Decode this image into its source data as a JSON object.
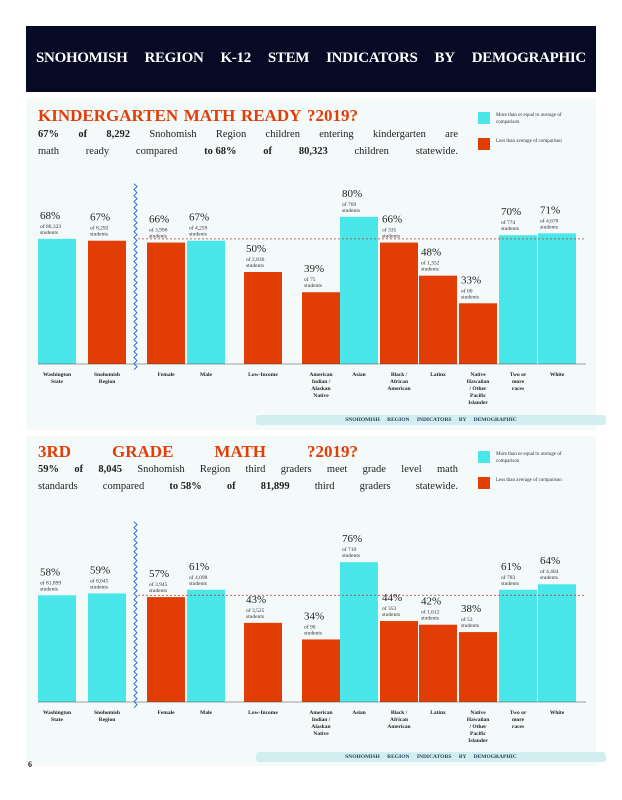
{
  "header": {
    "title_words": [
      "SNOHOMISH",
      "REGION",
      "K-12",
      "STEM",
      "INDICATORS",
      "BY",
      "DEMOGRAPHIC"
    ]
  },
  "legend": {
    "above_label": "More than or equal to average of comparison",
    "below_label": "Less than average of comparison",
    "above_color": "#49e6ea",
    "below_color": "#e23d05"
  },
  "footer_label": "SNOHOMISH REGION INDICATORS BY DEMOGRAPHIC",
  "page_number": "6",
  "sections": [
    {
      "title_words": [
        "KINDERGARTEN",
        "MATH",
        "READY",
        "?2019?"
      ],
      "summary_line1": [
        "67%",
        "of",
        "8,292",
        "Snohomish",
        "Region",
        "children",
        "entering",
        "kindergarten",
        "are"
      ],
      "summary_line2": [
        "math",
        "ready",
        "compared",
        "to 68%",
        "of",
        "80,323",
        "children",
        "statewide."
      ],
      "chart_data": {
        "type": "bar",
        "title": "KINDERGARTEN MATH READY ?2019?",
        "reference_line": 68,
        "categories": [
          "Washington State",
          "Snohomish Region",
          "Female",
          "Male",
          "Low-Income",
          "American Indian / Alaskan Native",
          "Asian",
          "Black / African American",
          "Latinx",
          "Native Hawaiian / Other Pacific Islander",
          "Two or more races",
          "White"
        ],
        "values": [
          68,
          67,
          66,
          67,
          50,
          39,
          80,
          66,
          48,
          33,
          70,
          71
        ],
        "value_labels": [
          "68%",
          "67%",
          "66%",
          "67%",
          "50%",
          "39%",
          "80%",
          "66%",
          "48%",
          "33%",
          "70%",
          "71%"
        ],
        "sub_labels": [
          "of 80,323 students",
          "of 8,292 students",
          "of 3,996 students",
          "of 4,259 students",
          "of 2,836 students",
          "of 75 students",
          "of 769 students",
          "of 335 students",
          "of 1,352 students",
          "of 60 students",
          "of 774 students",
          "of 4,670 students"
        ],
        "colors": [
          "#49e6ea",
          "#e23d05",
          "#e23d05",
          "#49e6ea",
          "#e23d05",
          "#e23d05",
          "#49e6ea",
          "#e23d05",
          "#e23d05",
          "#e23d05",
          "#49e6ea",
          "#49e6ea"
        ]
      }
    },
    {
      "title_words": [
        "3RD",
        "GRADE",
        "MATH",
        "?2019?"
      ],
      "summary_line1": [
        "59%",
        "of",
        "8,045",
        "Snohomish",
        "Region",
        "third",
        "graders",
        "meet",
        "grade",
        "level",
        "math"
      ],
      "summary_line2": [
        "standards",
        "compared",
        "to 58%",
        "of",
        "81,899",
        "third",
        "graders",
        "statewide."
      ],
      "chart_data": {
        "type": "bar",
        "title": "3RD GRADE MATH ?2019?",
        "reference_line": 58,
        "categories": [
          "Washington State",
          "Snohomish Region",
          "Female",
          "Male",
          "Low-Income",
          "American Indian / Alaskan Native",
          "Asian",
          "Black / African American",
          "Latinx",
          "Native Hawaiian / Other Pacific Islander",
          "Two or more races",
          "White"
        ],
        "values": [
          58,
          59,
          57,
          61,
          43,
          34,
          76,
          44,
          42,
          38,
          61,
          64
        ],
        "value_labels": [
          "58%",
          "59%",
          "57%",
          "61%",
          "43%",
          "34%",
          "76%",
          "44%",
          "42%",
          "38%",
          "61%",
          "64%"
        ],
        "sub_labels": [
          "of 81,899 students",
          "of 8,045 students",
          "of 3,945 students",
          "of 4,098 students",
          "of 3,525 students",
          "of 90 students",
          "of 710 students",
          "of 353 students",
          "of 1,612 students",
          "of 53 students",
          "of 783 students",
          "of 4,404 students"
        ],
        "colors": [
          "#49e6ea",
          "#49e6ea",
          "#e23d05",
          "#49e6ea",
          "#e23d05",
          "#e23d05",
          "#49e6ea",
          "#e23d05",
          "#e23d05",
          "#e23d05",
          "#49e6ea",
          "#49e6ea"
        ]
      }
    }
  ]
}
